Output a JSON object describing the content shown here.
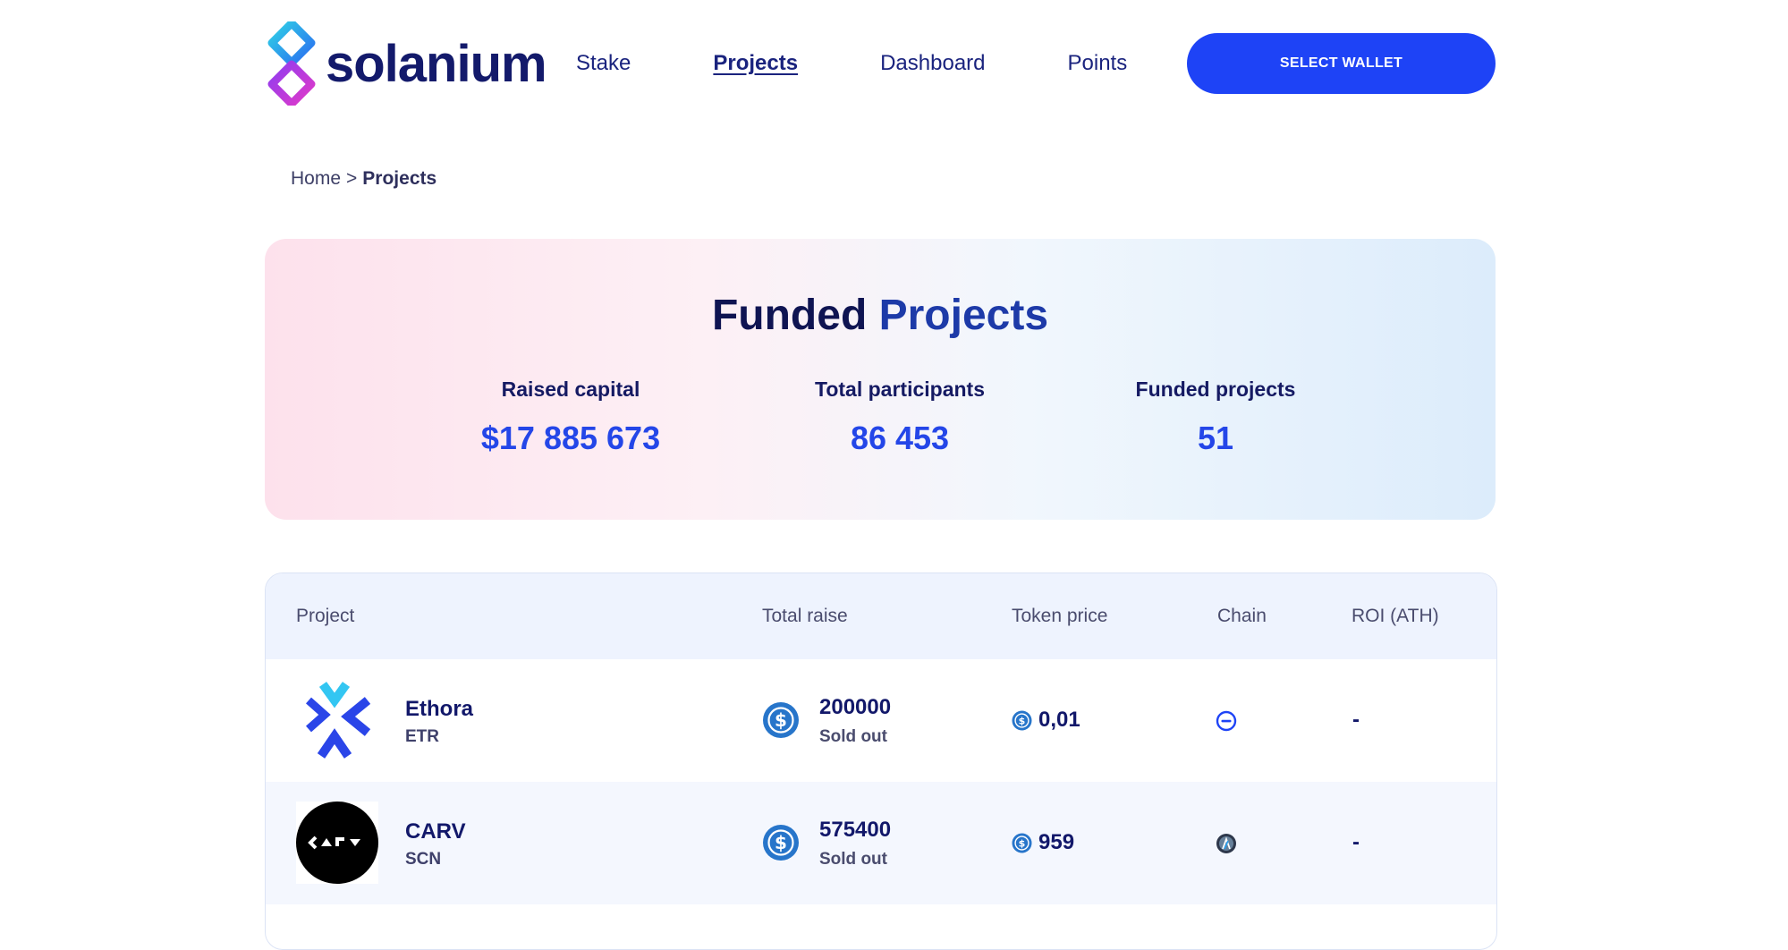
{
  "brand": {
    "name": "solanium",
    "logo_icon": "solanium-logo-icon"
  },
  "nav": {
    "items": [
      {
        "label": "Stake",
        "active": false
      },
      {
        "label": "Projects",
        "active": true
      },
      {
        "label": "Dashboard",
        "active": false
      },
      {
        "label": "Points",
        "active": false
      }
    ],
    "wallet_button": "SELECT WALLET"
  },
  "breadcrumb": {
    "home": "Home",
    "separator": ">",
    "current": "Projects"
  },
  "hero": {
    "title_part1": "Funded",
    "title_part2": "Projects",
    "stats": [
      {
        "label": "Raised capital",
        "value": "$17 885 673"
      },
      {
        "label": "Total participants",
        "value": "86 453"
      },
      {
        "label": "Funded projects",
        "value": "51"
      }
    ]
  },
  "table": {
    "headers": [
      "Project",
      "Total raise",
      "Token price",
      "Chain",
      "ROI (ATH)"
    ],
    "rows": [
      {
        "name": "Ethora",
        "ticker": "ETR",
        "total_raise": "200000",
        "status": "Sold out",
        "token_price": "0,01",
        "chain_icon": "solana-chain-icon",
        "roi": "-"
      },
      {
        "name": "CARV",
        "ticker": "SCN",
        "total_raise": "575400",
        "status": "Sold out",
        "token_price": "959",
        "chain_icon": "arbitrum-chain-icon",
        "roi": "-"
      }
    ]
  },
  "colors": {
    "accent": "#1e43f6",
    "navy": "#131a6b",
    "usdc": "#2775ca",
    "hero_pink": "#fde1ec",
    "hero_blue": "#dcecfb"
  }
}
